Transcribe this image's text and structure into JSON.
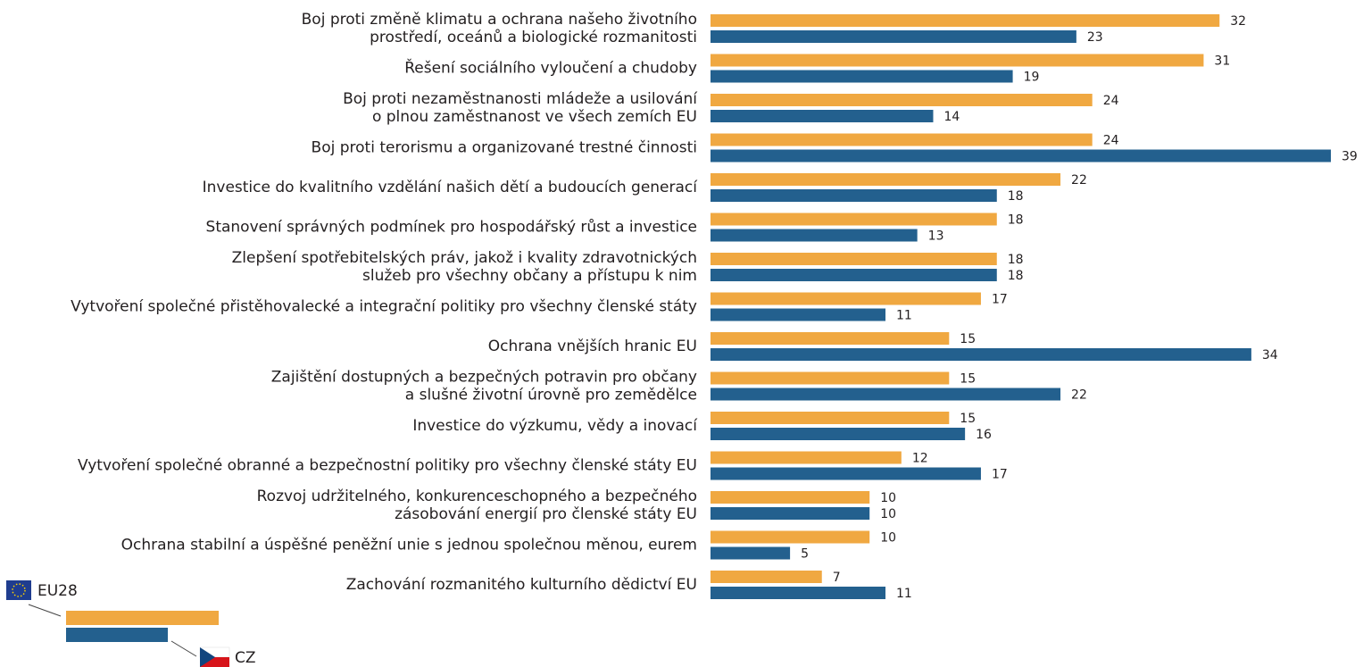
{
  "chart_data": {
    "type": "bar",
    "orientation": "horizontal",
    "categories": [
      [
        "Boj proti změně klimatu a ochrana našeho životního",
        "prostředí, oceánů a biologické rozmanitosti"
      ],
      [
        "Řešení sociálního vyloučení a chudoby"
      ],
      [
        "Boj proti nezaměstnanosti mládeže a usilování",
        "o plnou zaměstnanost ve všech zemích EU"
      ],
      [
        "Boj proti terorismu a organizované trestné činnosti"
      ],
      [
        "Investice do kvalitního vzdělání našich dětí a budoucích generací"
      ],
      [
        "Stanovení správných podmínek pro hospodářský růst a investice"
      ],
      [
        "Zlepšení spotřebitelských práv, jakož i kvality zdravotnických",
        "služeb pro všechny občany a přístupu k nim"
      ],
      [
        "Vytvoření společné přistěhovalecké a integrační politiky pro všechny členské státy"
      ],
      [
        "Ochrana vnějších hranic EU"
      ],
      [
        "Zajištění dostupných a bezpečných potravin pro občany",
        "a slušné životní úrovně pro zemědělce"
      ],
      [
        "Investice do výzkumu, vědy a inovací"
      ],
      [
        "Vytvoření společné obranné a bezpečnostní politiky pro všechny členské státy EU"
      ],
      [
        "Rozvoj udržitelného, konkurenceschopného a bezpečného",
        "zásobování energií pro členské státy EU"
      ],
      [
        "Ochrana stabilní a úspěšné peněžní unie s jednou společnou měnou, eurem"
      ],
      [
        "Zachování rozmanitého kulturního dědictví EU"
      ]
    ],
    "series": [
      {
        "name": "EU28",
        "color": "#f0a841",
        "values": [
          32,
          31,
          24,
          24,
          22,
          18,
          18,
          17,
          15,
          15,
          15,
          12,
          10,
          10,
          7
        ]
      },
      {
        "name": "CZ",
        "color": "#23608e",
        "values": [
          23,
          19,
          14,
          39,
          18,
          13,
          18,
          11,
          34,
          22,
          16,
          17,
          10,
          5,
          11
        ]
      }
    ]
  }
}
